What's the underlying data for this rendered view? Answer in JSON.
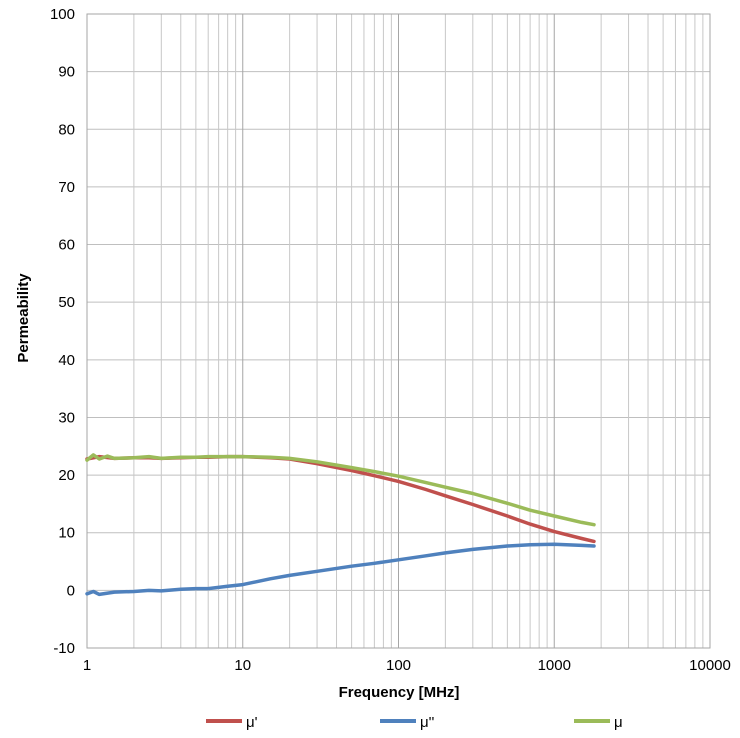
{
  "chart_data": {
    "type": "line",
    "title": "",
    "xlabel": "Frequency [MHz]",
    "ylabel": "Permeability",
    "x_scale": "log",
    "xlim": [
      1,
      10000
    ],
    "ylim": [
      -10,
      100
    ],
    "x_ticks": [
      1,
      10,
      100,
      1000,
      10000
    ],
    "x_tick_labels": [
      "1",
      "10",
      "100",
      "1000",
      "10000"
    ],
    "y_ticks": [
      -10,
      0,
      10,
      20,
      30,
      40,
      50,
      60,
      70,
      80,
      90,
      100
    ],
    "y_tick_labels": [
      "-10",
      "0",
      "10",
      "20",
      "30",
      "40",
      "50",
      "60",
      "70",
      "80",
      "90",
      "100"
    ],
    "grid": true,
    "legend_position": "bottom",
    "series": [
      {
        "name": "μ'",
        "color": "#c0504d",
        "x": [
          1,
          1.2,
          1.5,
          2,
          2.5,
          3,
          4,
          5,
          6,
          8,
          10,
          15,
          20,
          30,
          50,
          70,
          100,
          150,
          200,
          300,
          500,
          700,
          1000,
          1500,
          1800
        ],
        "y": [
          22.8,
          23.2,
          22.9,
          23.0,
          23.0,
          22.9,
          23.0,
          23.1,
          23.1,
          23.2,
          23.2,
          23.0,
          22.8,
          22.0,
          20.8,
          19.9,
          18.9,
          17.5,
          16.4,
          14.9,
          12.9,
          11.5,
          10.2,
          9.0,
          8.5
        ]
      },
      {
        "name": "μ''",
        "color": "#4f81bd",
        "x": [
          1,
          1.1,
          1.2,
          1.5,
          2,
          2.5,
          3,
          4,
          5,
          6,
          8,
          10,
          15,
          20,
          30,
          50,
          70,
          100,
          150,
          200,
          300,
          500,
          700,
          1000,
          1500,
          1800
        ],
        "y": [
          -0.6,
          -0.2,
          -0.7,
          -0.3,
          -0.2,
          0.0,
          -0.1,
          0.2,
          0.3,
          0.3,
          0.7,
          1.0,
          2.0,
          2.6,
          3.3,
          4.2,
          4.7,
          5.3,
          6.0,
          6.5,
          7.1,
          7.7,
          7.9,
          8.0,
          7.8,
          7.7
        ]
      },
      {
        "name": "μ",
        "color": "#9bbb59",
        "x": [
          1,
          1.1,
          1.2,
          1.35,
          1.5,
          2,
          2.5,
          3,
          4,
          5,
          6,
          8,
          10,
          15,
          20,
          30,
          50,
          70,
          100,
          150,
          200,
          300,
          500,
          700,
          1000,
          1500,
          1800
        ],
        "y": [
          22.6,
          23.5,
          22.8,
          23.3,
          22.9,
          23.0,
          23.2,
          22.9,
          23.1,
          23.1,
          23.2,
          23.2,
          23.2,
          23.1,
          22.9,
          22.3,
          21.3,
          20.6,
          19.8,
          18.7,
          17.9,
          16.8,
          15.1,
          13.9,
          12.9,
          11.8,
          11.4
        ]
      }
    ]
  }
}
